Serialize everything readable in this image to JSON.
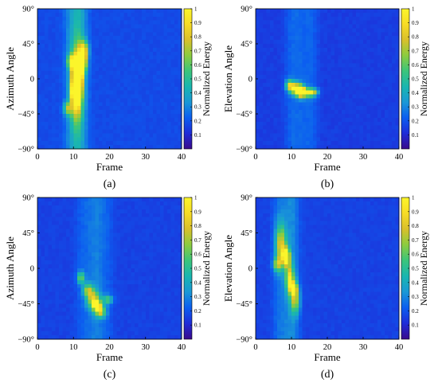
{
  "figure": {
    "colorbar": {
      "ticks": [
        "0.1",
        "0.2",
        "0.3",
        "0.4",
        "0.5",
        "0.6",
        "0.7",
        "0.8",
        "0.9",
        "1"
      ],
      "label": "Normalized Energy",
      "colormap": [
        "#3a0a8c",
        "#1f2cd8",
        "#0c5ef0",
        "#1a98d6",
        "#19b6b0",
        "#3bc57b",
        "#8ccc3f",
        "#d9c02b",
        "#f7dc26",
        "#fbf52b"
      ]
    }
  },
  "chart_data": [
    {
      "id": "a",
      "type": "heatmap",
      "caption": "(a)",
      "xlabel": "Frame",
      "ylabel": "Azimuth Angle",
      "x_ticks": [
        "0",
        "10",
        "20",
        "30",
        "40"
      ],
      "y_ticks": [
        "90°",
        "45°",
        "0",
        "−45°",
        "−90°"
      ],
      "xlim": [
        0,
        40
      ],
      "ylim": [
        -90,
        90
      ],
      "background_level": 0.18,
      "blobs": [
        {
          "x": 10.5,
          "y": -10,
          "sx": 0.9,
          "sy": 28,
          "v": 0.55
        },
        {
          "x": 11.5,
          "y": 0,
          "sx": 0.9,
          "sy": 30,
          "v": 0.55
        },
        {
          "x": 11.0,
          "y": 2,
          "sx": 0.7,
          "sy": 12,
          "v": 0.95
        },
        {
          "x": 10.5,
          "y": -18,
          "sx": 0.7,
          "sy": 8,
          "v": 0.8
        },
        {
          "x": 12.5,
          "y": 22,
          "sx": 0.8,
          "sy": 10,
          "v": 0.75
        },
        {
          "x": 9.5,
          "y": 22,
          "sx": 0.8,
          "sy": 6,
          "v": 0.6
        },
        {
          "x": 8.5,
          "y": -38,
          "sx": 0.8,
          "sy": 6,
          "v": 0.45
        },
        {
          "x": 13.0,
          "y": 38,
          "sx": 0.8,
          "sy": 8,
          "v": 0.45
        }
      ]
    },
    {
      "id": "b",
      "type": "heatmap",
      "caption": "(b)",
      "xlabel": "Frame",
      "ylabel": "Elevation Angle",
      "x_ticks": [
        "0",
        "10",
        "20",
        "30",
        "40"
      ],
      "y_ticks": [
        "90°",
        "45°",
        "0",
        "−45°",
        "−90°"
      ],
      "xlim": [
        0,
        40
      ],
      "ylim": [
        -90,
        90
      ],
      "background_level": 0.15,
      "blobs": [
        {
          "x": 12.5,
          "y": -16,
          "sx": 0.9,
          "sy": 5,
          "v": 0.95
        },
        {
          "x": 11.0,
          "y": -12,
          "sx": 1.2,
          "sy": 5,
          "v": 0.6
        },
        {
          "x": 14.5,
          "y": -18,
          "sx": 1.5,
          "sy": 4,
          "v": 0.55
        },
        {
          "x": 9.5,
          "y": -8,
          "sx": 0.8,
          "sy": 5,
          "v": 0.45
        },
        {
          "x": 16.0,
          "y": -17,
          "sx": 1.0,
          "sy": 3,
          "v": 0.35
        }
      ]
    },
    {
      "id": "c",
      "type": "heatmap",
      "caption": "(c)",
      "xlabel": "Frame",
      "ylabel": "Azimuth Angle",
      "x_ticks": [
        "0",
        "10",
        "20",
        "30",
        "40"
      ],
      "y_ticks": [
        "90°",
        "45°",
        "0",
        "−45°",
        "−90°"
      ],
      "xlim": [
        0,
        40
      ],
      "ylim": [
        -90,
        90
      ],
      "background_level": 0.16,
      "blobs": [
        {
          "x": 16.5,
          "y": -47,
          "sx": 0.7,
          "sy": 4,
          "v": 0.95
        },
        {
          "x": 15.5,
          "y": -40,
          "sx": 1.2,
          "sy": 8,
          "v": 0.55
        },
        {
          "x": 14.0,
          "y": -28,
          "sx": 1.0,
          "sy": 6,
          "v": 0.45
        },
        {
          "x": 12.0,
          "y": -12,
          "sx": 0.7,
          "sy": 5,
          "v": 0.45
        },
        {
          "x": 17.5,
          "y": -55,
          "sx": 1.0,
          "sy": 5,
          "v": 0.55
        },
        {
          "x": 19.5,
          "y": -40,
          "sx": 1.0,
          "sy": 4,
          "v": 0.35
        }
      ]
    },
    {
      "id": "d",
      "type": "heatmap",
      "caption": "(d)",
      "xlabel": "Frame",
      "ylabel": "Elevation Angle",
      "x_ticks": [
        "0",
        "10",
        "20",
        "30",
        "40"
      ],
      "y_ticks": [
        "90°",
        "45°",
        "0",
        "−45°",
        "−90°"
      ],
      "xlim": [
        0,
        40
      ],
      "ylim": [
        -90,
        90
      ],
      "background_level": 0.16,
      "blobs": [
        {
          "x": 8.5,
          "y": 15,
          "sx": 0.7,
          "sy": 8,
          "v": 0.95
        },
        {
          "x": 7.0,
          "y": 30,
          "sx": 1.0,
          "sy": 18,
          "v": 0.55
        },
        {
          "x": 9.5,
          "y": -12,
          "sx": 0.8,
          "sy": 12,
          "v": 0.6
        },
        {
          "x": 11.0,
          "y": -40,
          "sx": 0.9,
          "sy": 12,
          "v": 0.5
        },
        {
          "x": 6.0,
          "y": 5,
          "sx": 0.8,
          "sy": 6,
          "v": 0.45
        },
        {
          "x": 10.5,
          "y": -25,
          "sx": 0.8,
          "sy": 6,
          "v": 0.55
        }
      ]
    }
  ]
}
